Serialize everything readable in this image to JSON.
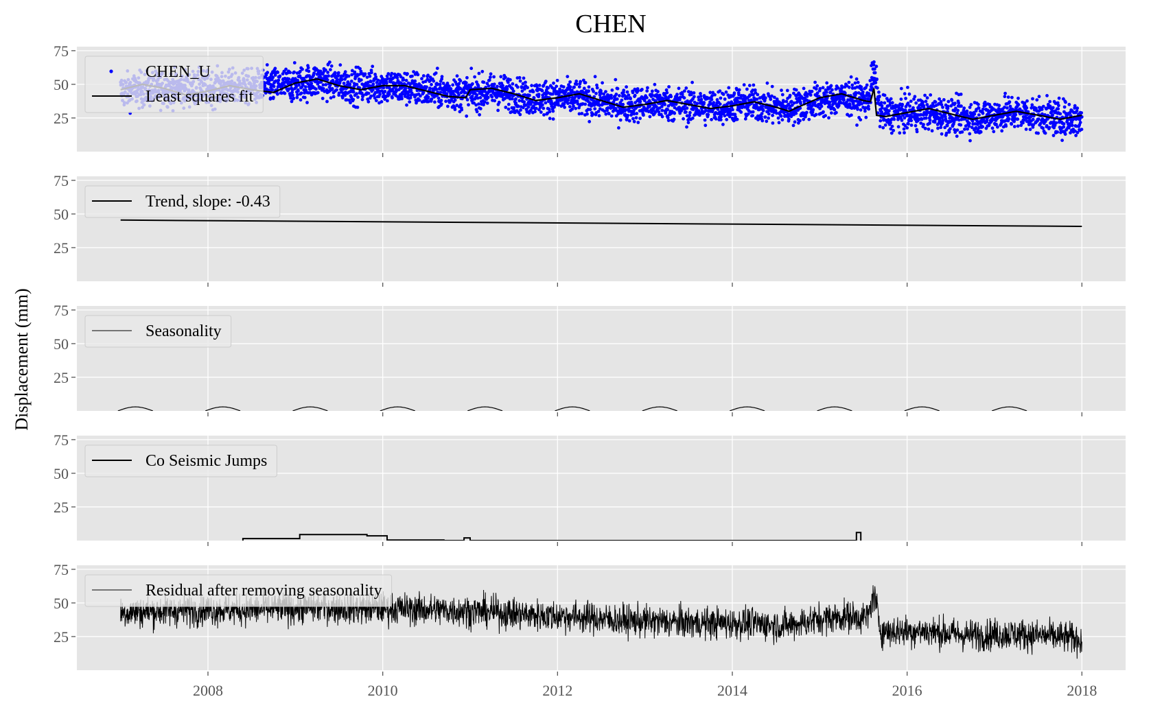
{
  "figure": {
    "title": "CHEN",
    "ylabel": "Displacement (mm)"
  },
  "colors": {
    "panel_bg": "#e5e5e5",
    "grid": "#ffffff",
    "tick_text": "#555555",
    "observations": "#0000ff",
    "fit": "#000000"
  },
  "chart_data": [
    {
      "type": "scatter",
      "panel": 1,
      "legend": [
        "CHEN_U",
        "Least squares fit"
      ],
      "legend_position": "top-left",
      "xlim": [
        2006.5,
        2018.5
      ],
      "ylim": [
        0,
        78
      ],
      "yticks": [
        "25",
        "50",
        "75"
      ],
      "xticks": [
        "2008",
        "2010",
        "2012",
        "2014",
        "2016",
        "2018"
      ],
      "grid": true,
      "series": [
        {
          "name": "CHEN_U",
          "style": "dots",
          "color": "#0000ff",
          "x": [
            2007.0,
            2007.5,
            2008.0,
            2008.5,
            2009.0,
            2009.3,
            2009.6,
            2010.0,
            2010.5,
            2011.0,
            2011.3,
            2011.7,
            2012.2,
            2012.7,
            2013.2,
            2013.7,
            2014.2,
            2014.6,
            2015.0,
            2015.3,
            2015.55,
            2015.62,
            2015.7,
            2016.2,
            2016.7,
            2017.2,
            2017.7,
            2018.0
          ],
          "y": [
            45,
            47,
            47,
            48,
            50,
            53,
            49,
            49,
            46,
            43,
            45,
            40,
            40,
            35,
            36,
            33,
            36,
            32,
            38,
            40,
            38,
            58,
            28,
            29,
            25,
            29,
            25,
            24
          ]
        },
        {
          "name": "Least squares fit",
          "style": "line",
          "color": "#000000",
          "x": [
            2007.0,
            2007.25,
            2007.5,
            2007.75,
            2008.0,
            2008.25,
            2008.5,
            2008.75,
            2009.0,
            2009.25,
            2009.5,
            2009.75,
            2010.0,
            2010.25,
            2010.5,
            2010.75,
            2010.95,
            2011.0,
            2011.25,
            2011.5,
            2011.75,
            2012.0,
            2012.25,
            2012.5,
            2012.75,
            2013.0,
            2013.25,
            2013.5,
            2013.75,
            2014.0,
            2014.25,
            2014.5,
            2014.65,
            2014.75,
            2015.0,
            2015.25,
            2015.5,
            2015.58,
            2015.62,
            2015.65,
            2015.75,
            2016.0,
            2016.25,
            2016.5,
            2016.75,
            2017.0,
            2017.25,
            2017.5,
            2017.75,
            2018.0
          ],
          "y": [
            46,
            50,
            47,
            42,
            45,
            49,
            46,
            44,
            51,
            54,
            49,
            46,
            49,
            49,
            45,
            41,
            40,
            46,
            47,
            43,
            38,
            40,
            43,
            38,
            33,
            35,
            38,
            35,
            32,
            34,
            37,
            33,
            30,
            33,
            40,
            43,
            38,
            37,
            47,
            27,
            26,
            29,
            32,
            28,
            24,
            27,
            30,
            27,
            24,
            27
          ]
        }
      ]
    },
    {
      "type": "line",
      "panel": 2,
      "legend": [
        "Trend, slope: -0.43"
      ],
      "legend_position": "top-left",
      "xlim": [
        2006.5,
        2018.5
      ],
      "ylim": [
        0,
        78
      ],
      "yticks": [
        "25",
        "50",
        "75"
      ],
      "grid": true,
      "series": [
        {
          "name": "Trend, slope: -0.43",
          "color": "#000000",
          "x": [
            2007.0,
            2018.0
          ],
          "y": [
            45.5,
            40.8
          ]
        }
      ]
    },
    {
      "type": "line",
      "panel": 3,
      "legend": [
        "Seasonality"
      ],
      "legend_position": "top-left",
      "xlim": [
        2006.5,
        2018.5
      ],
      "ylim": [
        0,
        78
      ],
      "yticks": [
        "25",
        "50",
        "75"
      ],
      "grid": true,
      "series": [
        {
          "name": "Seasonality",
          "color": "#000000",
          "amplitude": 3,
          "peaks": [
            2007.17,
            2008.17,
            2009.17,
            2010.17,
            2011.17,
            2012.17,
            2013.17,
            2014.17,
            2015.17,
            2016.17,
            2017.17
          ]
        }
      ]
    },
    {
      "type": "line",
      "panel": 4,
      "legend": [
        "Co Seismic Jumps"
      ],
      "legend_position": "top-left",
      "xlim": [
        2006.5,
        2018.5
      ],
      "ylim": [
        0,
        78
      ],
      "yticks": [
        "25",
        "50",
        "75"
      ],
      "grid": true,
      "series": [
        {
          "name": "Co Seismic Jumps",
          "color": "#000000",
          "x": [
            2008.4,
            2008.4,
            2009.05,
            2009.05,
            2009.82,
            2009.82,
            2010.05,
            2010.05,
            2010.7,
            2010.7,
            2010.93,
            2010.93,
            2011.0,
            2011.0,
            2015.42,
            2015.42,
            2015.47,
            2015.47
          ],
          "y": [
            0,
            1.5,
            1.5,
            4.5,
            4.5,
            3.5,
            3.5,
            0.4,
            0.4,
            0,
            0,
            2,
            2,
            0,
            0,
            6,
            6,
            0
          ]
        }
      ]
    },
    {
      "type": "line",
      "panel": 5,
      "legend": [
        "Residual after removing seasonality"
      ],
      "legend_position": "top-left",
      "xlim": [
        2006.5,
        2018.5
      ],
      "ylim": [
        0,
        78
      ],
      "yticks": [
        "25",
        "50",
        "75"
      ],
      "xticks": [
        "2008",
        "2010",
        "2012",
        "2014",
        "2016",
        "2018"
      ],
      "grid": true,
      "series": [
        {
          "name": "Residual after removing seasonality",
          "color": "#000000",
          "x": [
            2007.0,
            2007.5,
            2008.0,
            2008.5,
            2009.0,
            2009.3,
            2009.6,
            2010.0,
            2010.5,
            2011.0,
            2011.3,
            2011.7,
            2012.2,
            2012.7,
            2013.2,
            2013.7,
            2014.2,
            2014.6,
            2015.0,
            2015.3,
            2015.55,
            2015.62,
            2015.7,
            2016.2,
            2016.7,
            2017.2,
            2017.7,
            2018.0
          ],
          "y": [
            43,
            44,
            45,
            45,
            46,
            47,
            46,
            46,
            45,
            44,
            43,
            41,
            40,
            37,
            36,
            35,
            35,
            33,
            38,
            40,
            39,
            57,
            29,
            29,
            26,
            27,
            25,
            23
          ]
        }
      ]
    }
  ]
}
